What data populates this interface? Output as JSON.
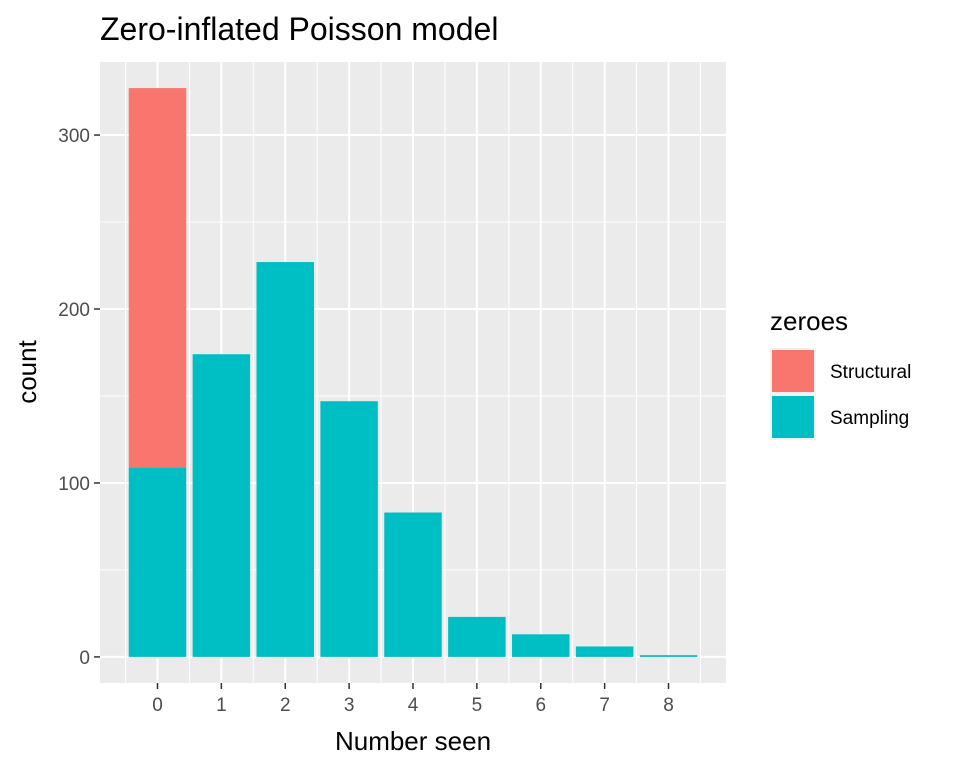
{
  "chart_data": {
    "type": "bar",
    "stacked": true,
    "title": "Zero-inflated Poisson model",
    "xlabel": "Number seen",
    "ylabel": "count",
    "categories": [
      "0",
      "1",
      "2",
      "3",
      "4",
      "5",
      "6",
      "7",
      "8"
    ],
    "series": [
      {
        "name": "Structural",
        "color": "#F8766D",
        "values": [
          218,
          0,
          0,
          0,
          0,
          0,
          0,
          0,
          0
        ]
      },
      {
        "name": "Sampling",
        "color": "#00BFC4",
        "values": [
          109,
          174,
          227,
          147,
          83,
          23,
          13,
          6,
          1
        ]
      }
    ],
    "ylim": [
      -15,
      342
    ],
    "yticks": [
      0,
      100,
      200,
      300
    ],
    "grid": true,
    "legend": {
      "title": "zeroes",
      "position": "right",
      "items": [
        "Structural",
        "Sampling"
      ]
    },
    "panel_background": "#EBEBEB"
  }
}
